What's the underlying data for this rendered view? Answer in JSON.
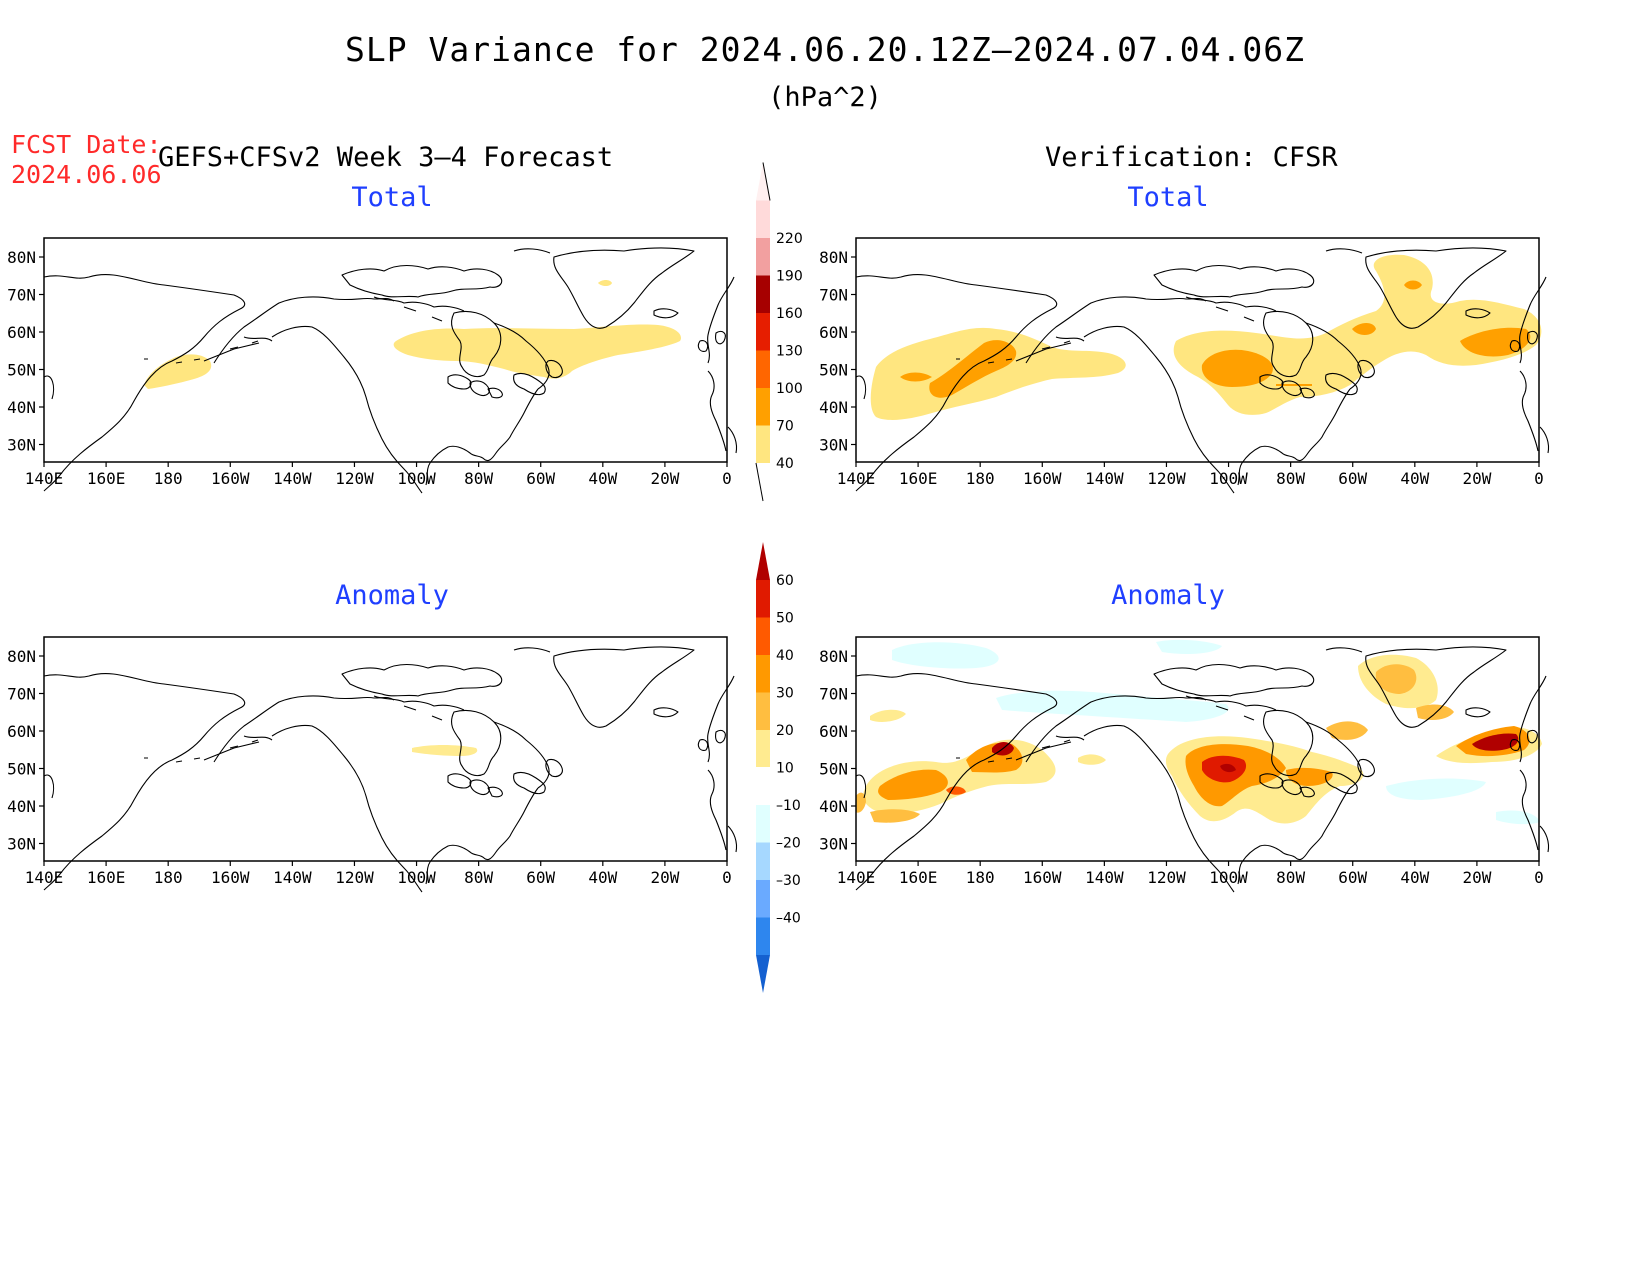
{
  "title": "SLP Variance for 2024.06.20.12Z–2024.07.04.06Z",
  "units": "(hPa^2)",
  "fcst_date_label": "FCST Date:",
  "fcst_date_value": "2024.06.06",
  "forecast_header": "GEFS+CFSv2 Week 3–4 Forecast",
  "verification_header": "Verification: CFSR",
  "panels": {
    "forecast_total": {
      "title": "Total"
    },
    "verification_total": {
      "title": "Total"
    },
    "forecast_anomaly": {
      "title": "Anomaly"
    },
    "verification_anomaly": {
      "title": "Anomaly"
    }
  },
  "lat_ticks": [
    "80N",
    "70N",
    "60N",
    "50N",
    "40N",
    "30N"
  ],
  "lon_ticks": [
    "140E",
    "160E",
    "180",
    "160W",
    "140W",
    "120W",
    "100W",
    "80W",
    "60W",
    "40W",
    "20W",
    "0"
  ],
  "colorbar_total": {
    "levels": [
      "40",
      "70",
      "100",
      "130",
      "160",
      "190",
      "220"
    ],
    "colors": [
      "#ffe680",
      "#ffa000",
      "#ff6600",
      "#e61e00",
      "#a60000",
      "#f2a0a0",
      "#ffdada",
      "#fff0f0"
    ]
  },
  "colorbar_anomaly": {
    "levels": [
      "60",
      "50",
      "40",
      "30",
      "20",
      "10",
      "–10",
      "–20",
      "–30",
      "–40"
    ],
    "colors_top_down": [
      "#b00000",
      "#e01a00",
      "#ff5a00",
      "#ff9900",
      "#ffbe40",
      "#ffeb90",
      "#ffffff",
      "#e0ffff",
      "#a6d8ff",
      "#6aaaff",
      "#2e86ee",
      "#1460d0"
    ]
  }
}
